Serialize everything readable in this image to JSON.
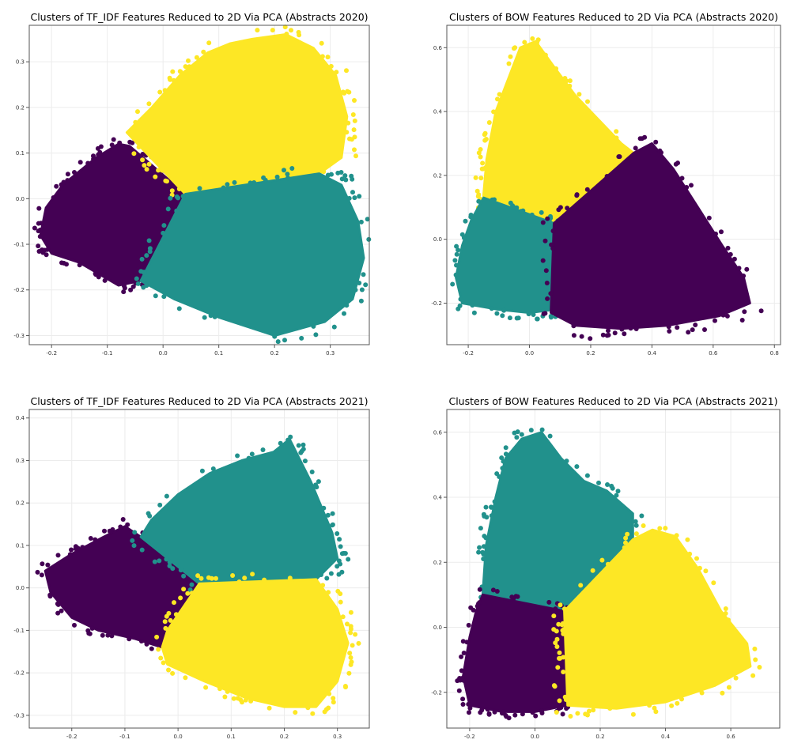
{
  "colors": {
    "purple": "#440154",
    "teal": "#21918c",
    "yellow": "#fde725",
    "grid": "#ececec",
    "axis": "#555555"
  },
  "chart_data": [
    {
      "type": "scatter",
      "title": "Clusters of TF_IDF Features Reduced to 2D Via PCA (Abstracts 2020)",
      "xlabel": "",
      "ylabel": "",
      "xlim": [
        -0.24,
        0.37
      ],
      "ylim": [
        -0.32,
        0.38
      ],
      "xticks": [
        -0.2,
        -0.1,
        0.0,
        0.1,
        0.2,
        0.3
      ],
      "yticks": [
        -0.3,
        -0.2,
        -0.1,
        0.0,
        0.1,
        0.2,
        0.3
      ],
      "grid": true,
      "clusters": [
        {
          "color": "purple",
          "polygon": [
            [
              -0.22,
              -0.08
            ],
            [
              -0.21,
              -0.02
            ],
            [
              -0.18,
              0.03
            ],
            [
              -0.12,
              0.09
            ],
            [
              -0.08,
              0.12
            ],
            [
              -0.06,
              0.115
            ],
            [
              0.04,
              0.01
            ],
            [
              -0.04,
              -0.18
            ],
            [
              -0.08,
              -0.19
            ],
            [
              -0.15,
              -0.14
            ],
            [
              -0.2,
              -0.12
            ]
          ]
        },
        {
          "color": "yellow",
          "polygon": [
            [
              -0.065,
              0.145
            ],
            [
              -0.02,
              0.2
            ],
            [
              0.03,
              0.27
            ],
            [
              0.08,
              0.32
            ],
            [
              0.12,
              0.34
            ],
            [
              0.16,
              0.35
            ],
            [
              0.22,
              0.36
            ],
            [
              0.27,
              0.33
            ],
            [
              0.31,
              0.27
            ],
            [
              0.33,
              0.18
            ],
            [
              0.32,
              0.09
            ],
            [
              0.28,
              0.055
            ],
            [
              0.04,
              0.01
            ]
          ]
        },
        {
          "color": "teal",
          "polygon": [
            [
              0.04,
              0.01
            ],
            [
              0.28,
              0.055
            ],
            [
              0.32,
              0.03
            ],
            [
              0.35,
              -0.05
            ],
            [
              0.36,
              -0.13
            ],
            [
              0.34,
              -0.22
            ],
            [
              0.29,
              -0.27
            ],
            [
              0.2,
              -0.3
            ],
            [
              0.1,
              -0.26
            ],
            [
              0.02,
              -0.22
            ],
            [
              -0.04,
              -0.18
            ]
          ]
        }
      ]
    },
    {
      "type": "scatter",
      "title": "Clusters of BOW Features Reduced to 2D Via PCA (Abstracts 2020)",
      "xlabel": "",
      "ylabel": "",
      "xlim": [
        -0.27,
        0.82
      ],
      "ylim": [
        -0.33,
        0.67
      ],
      "xticks": [
        -0.2,
        0.0,
        0.2,
        0.4,
        0.6,
        0.8
      ],
      "yticks": [
        -0.2,
        0.0,
        0.2,
        0.4,
        0.6
      ],
      "grid": true,
      "clusters": [
        {
          "color": "yellow",
          "polygon": [
            [
              -0.15,
              0.14
            ],
            [
              -0.14,
              0.25
            ],
            [
              -0.11,
              0.4
            ],
            [
              -0.07,
              0.5
            ],
            [
              -0.03,
              0.6
            ],
            [
              0.02,
              0.62
            ],
            [
              0.08,
              0.54
            ],
            [
              0.15,
              0.45
            ],
            [
              0.22,
              0.38
            ],
            [
              0.3,
              0.3
            ],
            [
              0.34,
              0.27
            ],
            [
              0.08,
              0.05
            ],
            [
              -0.15,
              0.13
            ]
          ]
        },
        {
          "color": "teal",
          "polygon": [
            [
              -0.15,
              0.13
            ],
            [
              0.08,
              0.05
            ],
            [
              0.08,
              -0.22
            ],
            [
              0.0,
              -0.23
            ],
            [
              -0.1,
              -0.22
            ],
            [
              -0.22,
              -0.2
            ],
            [
              -0.24,
              -0.12
            ],
            [
              -0.22,
              -0.02
            ],
            [
              -0.19,
              0.06
            ]
          ]
        },
        {
          "color": "purple",
          "polygon": [
            [
              0.08,
              0.05
            ],
            [
              0.34,
              0.27
            ],
            [
              0.4,
              0.3
            ],
            [
              0.47,
              0.22
            ],
            [
              0.55,
              0.1
            ],
            [
              0.63,
              -0.02
            ],
            [
              0.7,
              -0.12
            ],
            [
              0.72,
              -0.2
            ],
            [
              0.62,
              -0.24
            ],
            [
              0.45,
              -0.27
            ],
            [
              0.3,
              -0.28
            ],
            [
              0.15,
              -0.27
            ],
            [
              0.07,
              -0.23
            ]
          ]
        }
      ]
    },
    {
      "type": "scatter",
      "title": "Clusters of TF_IDF Features Reduced to 2D Via PCA (Abstracts 2021)",
      "xlabel": "",
      "ylabel": "",
      "xlim": [
        -0.28,
        0.36
      ],
      "ylim": [
        -0.33,
        0.42
      ],
      "xticks": [
        -0.2,
        -0.1,
        0.0,
        0.1,
        0.2,
        0.3
      ],
      "yticks": [
        -0.3,
        -0.2,
        -0.1,
        0.0,
        0.1,
        0.2,
        0.3,
        0.4
      ],
      "grid": true,
      "clusters": [
        {
          "color": "purple",
          "polygon": [
            [
              -0.25,
              0.04
            ],
            [
              -0.2,
              0.08
            ],
            [
              -0.14,
              0.12
            ],
            [
              -0.1,
              0.145
            ],
            [
              -0.07,
              0.12
            ],
            [
              0.04,
              0.01
            ],
            [
              -0.02,
              -0.1
            ],
            [
              -0.03,
              -0.14
            ],
            [
              -0.08,
              -0.12
            ],
            [
              -0.15,
              -0.1
            ],
            [
              -0.2,
              -0.07
            ],
            [
              -0.24,
              -0.01
            ]
          ]
        },
        {
          "color": "teal",
          "polygon": [
            [
              -0.07,
              0.12
            ],
            [
              -0.05,
              0.16
            ],
            [
              0.0,
              0.22
            ],
            [
              0.06,
              0.27
            ],
            [
              0.12,
              0.3
            ],
            [
              0.18,
              0.32
            ],
            [
              0.21,
              0.35
            ],
            [
              0.25,
              0.25
            ],
            [
              0.29,
              0.13
            ],
            [
              0.3,
              0.07
            ],
            [
              0.26,
              0.02
            ],
            [
              0.04,
              0.01
            ]
          ]
        },
        {
          "color": "yellow",
          "polygon": [
            [
              0.04,
              0.01
            ],
            [
              0.26,
              0.02
            ],
            [
              0.3,
              -0.05
            ],
            [
              0.32,
              -0.13
            ],
            [
              0.3,
              -0.22
            ],
            [
              0.26,
              -0.28
            ],
            [
              0.2,
              -0.28
            ],
            [
              0.13,
              -0.26
            ],
            [
              0.05,
              -0.22
            ],
            [
              -0.02,
              -0.18
            ],
            [
              -0.03,
              -0.14
            ],
            [
              -0.02,
              -0.1
            ]
          ]
        }
      ]
    },
    {
      "type": "scatter",
      "title": "Clusters of BOW Features Reduced to 2D Via PCA (Abstracts 2021)",
      "xlabel": "",
      "ylabel": "",
      "xlim": [
        -0.27,
        0.75
      ],
      "ylim": [
        -0.31,
        0.67
      ],
      "xticks": [
        -0.2,
        0.0,
        0.2,
        0.4,
        0.6
      ],
      "yticks": [
        -0.2,
        0.0,
        0.2,
        0.4,
        0.6
      ],
      "grid": true,
      "clusters": [
        {
          "color": "teal",
          "polygon": [
            [
              -0.16,
              0.1
            ],
            [
              -0.15,
              0.25
            ],
            [
              -0.12,
              0.4
            ],
            [
              -0.09,
              0.52
            ],
            [
              -0.04,
              0.58
            ],
            [
              0.02,
              0.6
            ],
            [
              0.08,
              0.52
            ],
            [
              0.15,
              0.45
            ],
            [
              0.22,
              0.42
            ],
            [
              0.3,
              0.35
            ],
            [
              0.3,
              0.27
            ],
            [
              0.09,
              0.05
            ]
          ]
        },
        {
          "color": "purple",
          "polygon": [
            [
              -0.16,
              0.1
            ],
            [
              0.09,
              0.05
            ],
            [
              0.1,
              -0.24
            ],
            [
              0.0,
              -0.26
            ],
            [
              -0.1,
              -0.26
            ],
            [
              -0.2,
              -0.24
            ],
            [
              -0.22,
              -0.15
            ],
            [
              -0.2,
              -0.03
            ],
            [
              -0.18,
              0.05
            ]
          ]
        },
        {
          "color": "yellow",
          "polygon": [
            [
              0.09,
              0.05
            ],
            [
              0.3,
              0.27
            ],
            [
              0.36,
              0.3
            ],
            [
              0.43,
              0.28
            ],
            [
              0.5,
              0.18
            ],
            [
              0.57,
              0.05
            ],
            [
              0.65,
              -0.05
            ],
            [
              0.66,
              -0.12
            ],
            [
              0.55,
              -0.18
            ],
            [
              0.4,
              -0.23
            ],
            [
              0.25,
              -0.25
            ],
            [
              0.1,
              -0.24
            ]
          ]
        }
      ]
    }
  ]
}
